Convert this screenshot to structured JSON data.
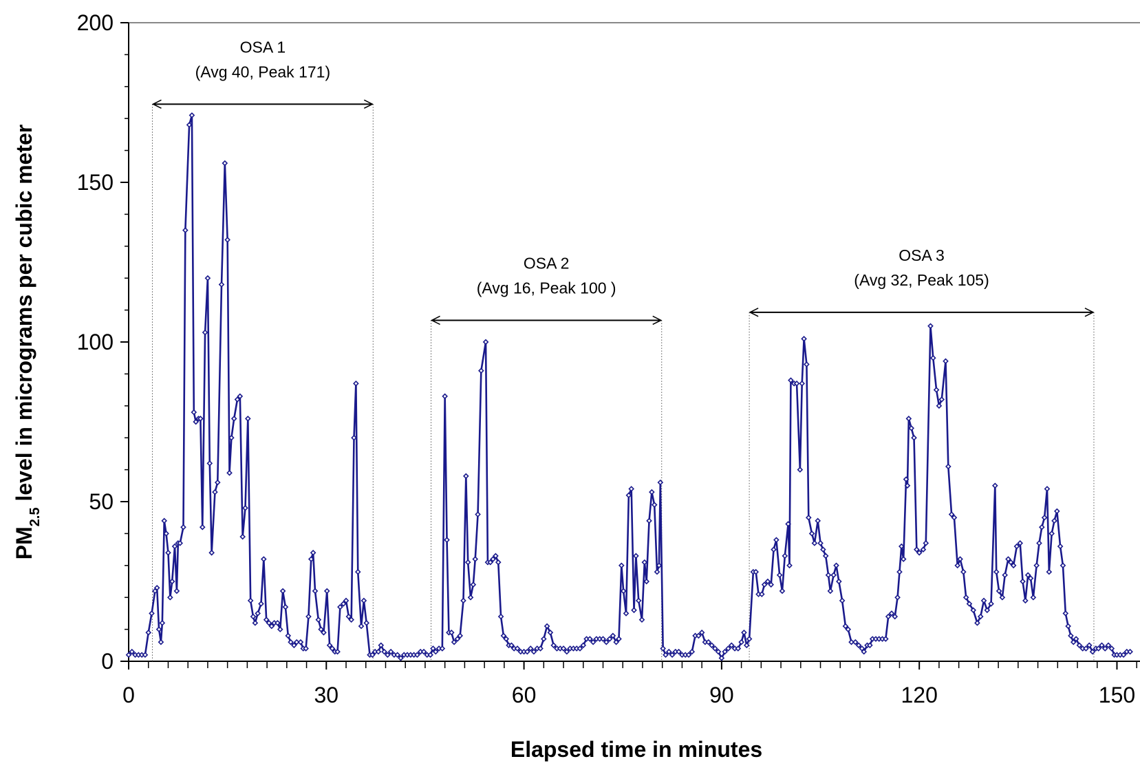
{
  "chart_data": {
    "type": "line",
    "ylabel": {
      "main": "PM",
      "sub": "2.5",
      "rest": " level in micrograms per cubic meter"
    },
    "xlabel": "Elapsed time in minutes",
    "xlim": [
      0,
      153.5
    ],
    "ylim": [
      0,
      200
    ],
    "xticks": [
      0,
      30,
      60,
      90,
      120,
      150
    ],
    "xminorticks": [
      3,
      6,
      9,
      12,
      15,
      18,
      21,
      24,
      27,
      33,
      36,
      39,
      42,
      45,
      48,
      51,
      54,
      57,
      63,
      66,
      69,
      72,
      75,
      78,
      81,
      84,
      87,
      93,
      96,
      99,
      102,
      105,
      108,
      111,
      114,
      117,
      123,
      126,
      129,
      132,
      135,
      138,
      141,
      144,
      147,
      153
    ],
    "yticks": [
      0,
      50,
      100,
      150,
      200
    ],
    "yminorticks": [
      10,
      20,
      30,
      40,
      60,
      70,
      80,
      90,
      110,
      120,
      130,
      140,
      160,
      170,
      180,
      190
    ],
    "series": [
      {
        "color": "#1a1a8c",
        "x": [
          0,
          0.5,
          1,
          1.5,
          2,
          2.5,
          3,
          3.5,
          4,
          4.3,
          4.6,
          4.9,
          5.1,
          5.4,
          5.7,
          6,
          6.3,
          6.6,
          7,
          7.3,
          7.5,
          7.8,
          8.3,
          8.6,
          9.2,
          9.6,
          9.9,
          10.2,
          10.6,
          10.9,
          11.2,
          11.6,
          12,
          12.3,
          12.6,
          13.1,
          13.5,
          14.1,
          14.6,
          15,
          15.3,
          15.6,
          16,
          16.5,
          16.9,
          17.3,
          17.7,
          18.1,
          18.5,
          18.9,
          19.2,
          19.6,
          20.1,
          20.5,
          20.9,
          21.3,
          21.7,
          22.1,
          22.6,
          23,
          23.4,
          23.8,
          24.2,
          24.6,
          25.1,
          25.5,
          26.1,
          26.5,
          26.9,
          27.3,
          27.7,
          28,
          28.3,
          28.8,
          29.2,
          29.6,
          30.1,
          30.5,
          30.9,
          31.3,
          31.7,
          32.1,
          32.6,
          33,
          33.4,
          33.8,
          34.2,
          34.5,
          34.8,
          35.3,
          35.7,
          36.1,
          36.6,
          37,
          37.4,
          37.9,
          38.3,
          38.8,
          39.3,
          39.8,
          40.3,
          40.8,
          41.3,
          41.8,
          42.3,
          42.8,
          43.3,
          43.8,
          44.3,
          44.8,
          45.3,
          45.8,
          46.2,
          46.6,
          47.1,
          47.6,
          48,
          48.3,
          48.6,
          49,
          49.4,
          49.9,
          50.3,
          50.8,
          51.2,
          51.5,
          51.9,
          52.3,
          52.6,
          53,
          53.5,
          54.2,
          54.5,
          54.9,
          55.3,
          55.7,
          56.1,
          56.5,
          56.9,
          57.3,
          57.7,
          58.1,
          58.5,
          59,
          59.5,
          60,
          60.5,
          61,
          61.5,
          62,
          62.5,
          63,
          63.5,
          64,
          64.5,
          65,
          65.5,
          66,
          66.5,
          67,
          67.5,
          68,
          68.5,
          69,
          69.5,
          70,
          70.5,
          71,
          71.5,
          72,
          72.5,
          73,
          73.5,
          74,
          74.4,
          74.8,
          75.1,
          75.5,
          75.9,
          76.3,
          76.7,
          77,
          77.4,
          77.9,
          78.3,
          78.6,
          79,
          79.4,
          79.8,
          80.2,
          80.5,
          80.7,
          81.1,
          81.5,
          82,
          82.5,
          83,
          83.5,
          84,
          84.5,
          85,
          85.5,
          86,
          86.5,
          87,
          87.5,
          88,
          88.5,
          89,
          89.5,
          90,
          90.5,
          91,
          91.5,
          92,
          92.5,
          93,
          93.4,
          93.8,
          94.2,
          94.8,
          95.2,
          95.6,
          96.1,
          96.5,
          97,
          97.5,
          97.9,
          98.3,
          98.8,
          99.2,
          99.6,
          100.1,
          100.3,
          100.5,
          101,
          101.4,
          101.9,
          102.2,
          102.5,
          102.9,
          103.2,
          103.7,
          104.1,
          104.6,
          105,
          105.4,
          105.8,
          106.2,
          106.5,
          107,
          107.4,
          107.8,
          108.3,
          108.8,
          109.2,
          109.7,
          110.3,
          110.8,
          111.3,
          111.6,
          112.1,
          112.5,
          112.9,
          113.4,
          113.9,
          114.4,
          114.9,
          115.3,
          115.8,
          116.3,
          116.7,
          117,
          117.3,
          117.6,
          118,
          118.2,
          118.4,
          118.8,
          119.2,
          119.6,
          120,
          120.6,
          121,
          121.7,
          122.1,
          122.6,
          123,
          123.4,
          124,
          124.4,
          124.9,
          125.3,
          125.8,
          126.2,
          126.7,
          127.1,
          127.6,
          128.2,
          128.8,
          129.3,
          129.8,
          130.3,
          130.9,
          131.5,
          131.7,
          132.1,
          132.6,
          133,
          133.5,
          133.9,
          134.3,
          134.8,
          135.3,
          135.7,
          136.1,
          136.5,
          136.9,
          137.3,
          137.8,
          138.2,
          138.6,
          139,
          139.4,
          139.7,
          140.1,
          140.5,
          140.9,
          141.4,
          141.8,
          142.2,
          142.6,
          143,
          143.4,
          143.8,
          144.3,
          144.8,
          145.3,
          145.8,
          146.3,
          146.8,
          147.2,
          147.7,
          148.2,
          148.7,
          149.2,
          149.6,
          150,
          150.5,
          151,
          151.5,
          152
        ],
        "values": [
          2,
          3,
          2,
          2,
          2,
          2,
          9,
          15,
          22,
          23,
          10,
          6,
          12,
          44,
          40,
          34,
          20,
          25,
          36,
          22,
          37,
          37,
          42,
          135,
          168,
          171,
          78,
          75,
          76,
          76,
          42,
          103,
          120,
          62,
          34,
          53,
          56,
          118,
          156,
          132,
          59,
          70,
          76,
          82,
          83,
          39,
          48,
          76,
          19,
          14,
          12,
          15,
          18,
          32,
          13,
          12,
          11,
          12,
          12,
          10,
          22,
          17,
          8,
          6,
          5,
          6,
          6,
          4,
          4,
          14,
          32,
          34,
          22,
          13,
          10,
          9,
          22,
          5,
          4,
          3,
          3,
          17,
          18,
          19,
          14,
          13,
          70,
          87,
          28,
          11,
          19,
          12,
          2,
          2,
          3,
          3,
          5,
          3,
          2,
          3,
          2,
          2,
          1,
          2,
          2,
          2,
          2,
          2,
          3,
          3,
          2,
          2,
          4,
          3,
          4,
          4,
          83,
          38,
          9,
          9,
          6,
          7,
          8,
          19,
          58,
          31,
          20,
          24,
          32,
          46,
          91,
          100,
          31,
          31,
          32,
          33,
          31,
          14,
          8,
          7,
          5,
          5,
          4,
          4,
          3,
          3,
          3,
          4,
          3,
          4,
          4,
          7,
          11,
          9,
          5,
          4,
          4,
          4,
          3,
          4,
          4,
          4,
          4,
          5,
          7,
          7,
          6,
          7,
          7,
          7,
          6,
          7,
          8,
          6,
          7,
          30,
          22,
          15,
          52,
          54,
          16,
          33,
          19,
          13,
          31,
          25,
          44,
          53,
          49,
          28,
          30,
          56,
          4,
          2,
          3,
          2,
          3,
          3,
          2,
          2,
          2,
          3,
          8,
          8,
          9,
          6,
          6,
          5,
          4,
          3,
          1,
          3,
          4,
          5,
          4,
          4,
          6,
          9,
          5,
          7,
          28,
          28,
          21,
          21,
          24,
          25,
          24,
          35,
          38,
          27,
          22,
          33,
          43,
          30,
          88,
          87,
          87,
          60,
          87,
          101,
          93,
          45,
          40,
          37,
          44,
          37,
          35,
          33,
          27,
          22,
          27,
          30,
          25,
          19,
          11,
          10,
          6,
          6,
          5,
          4,
          3,
          5,
          5,
          7,
          7,
          7,
          7,
          7,
          14,
          15,
          14,
          20,
          28,
          36,
          32,
          57,
          55,
          76,
          73,
          70,
          35,
          34,
          35,
          37,
          105,
          95,
          85,
          80,
          82,
          94,
          61,
          46,
          45,
          30,
          32,
          28,
          20,
          18,
          16,
          12,
          14,
          19,
          16,
          18,
          55,
          28,
          22,
          20,
          27,
          32,
          31,
          30,
          36,
          37,
          25,
          19,
          27,
          26,
          20,
          30,
          37,
          42,
          45,
          54,
          28,
          40,
          44,
          47,
          36,
          30,
          15,
          11,
          8,
          6,
          7,
          5,
          4,
          4,
          5,
          3,
          4,
          4,
          5,
          4,
          5,
          4,
          2,
          2,
          2,
          2,
          3,
          3
        ]
      }
    ],
    "annotations": [
      {
        "lines": [
          "OSA 1",
          "(Avg 40, Peak 171)"
        ],
        "x": [
          3.6,
          37.1
        ],
        "y": 174.5
      },
      {
        "lines": [
          "OSA 2",
          "(Avg 16, Peak 100 )"
        ],
        "x": [
          45.9,
          80.9
        ],
        "y": 106.8
      },
      {
        "lines": [
          "OSA 3",
          "(Avg 32, Peak 105)"
        ],
        "x": [
          94.2,
          146.5
        ],
        "y": 109.3
      }
    ]
  }
}
